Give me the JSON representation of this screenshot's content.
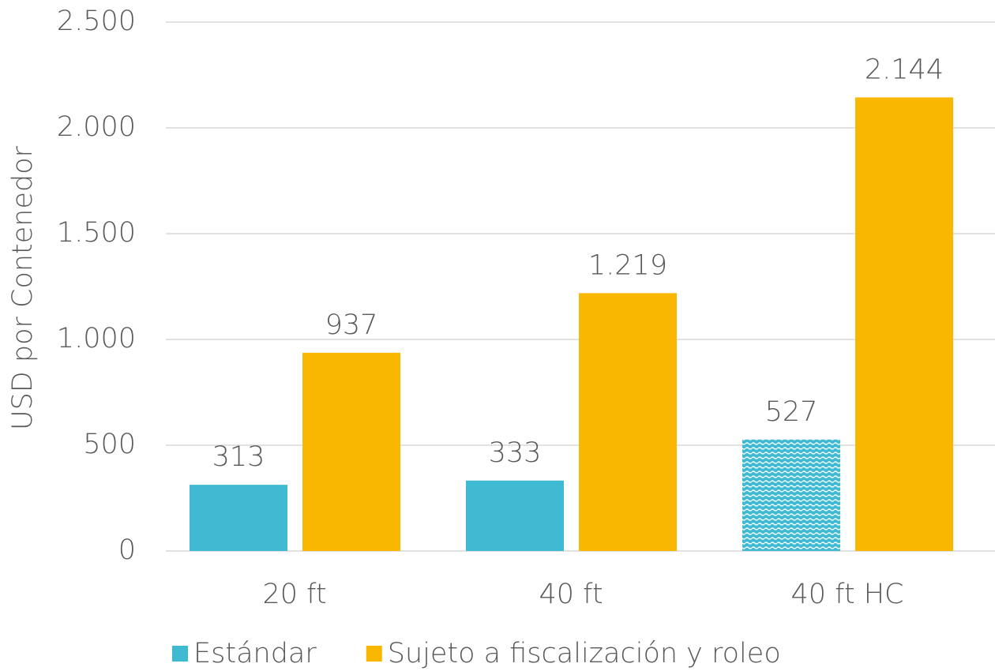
{
  "chart_data": {
    "type": "bar",
    "y_label": "USD por Contenedor",
    "categories": [
      "20 ft",
      "40 ft",
      "40 ft HC"
    ],
    "series": [
      {
        "name": "Estándar",
        "color": "#40bad2",
        "values": [
          313,
          333,
          527
        ],
        "value_labels": [
          "313",
          "333",
          "527"
        ],
        "hatch": [
          false,
          false,
          true
        ]
      },
      {
        "name": "Sujeto a fiscalización y roleo",
        "color": "#f9b700",
        "values": [
          937,
          1219,
          2144
        ],
        "value_labels": [
          "937",
          "1.219",
          "2.144"
        ]
      }
    ],
    "ylim": [
      0,
      2500
    ],
    "yticks": [
      0,
      500,
      {
        "value": 1000,
        "label": "1.000"
      },
      {
        "value": 1500,
        "label": "1.500"
      },
      {
        "value": 2000,
        "label": "2.000"
      },
      {
        "value": 2500,
        "label": "2.500"
      }
    ],
    "grid": true,
    "legend": "bottom"
  }
}
